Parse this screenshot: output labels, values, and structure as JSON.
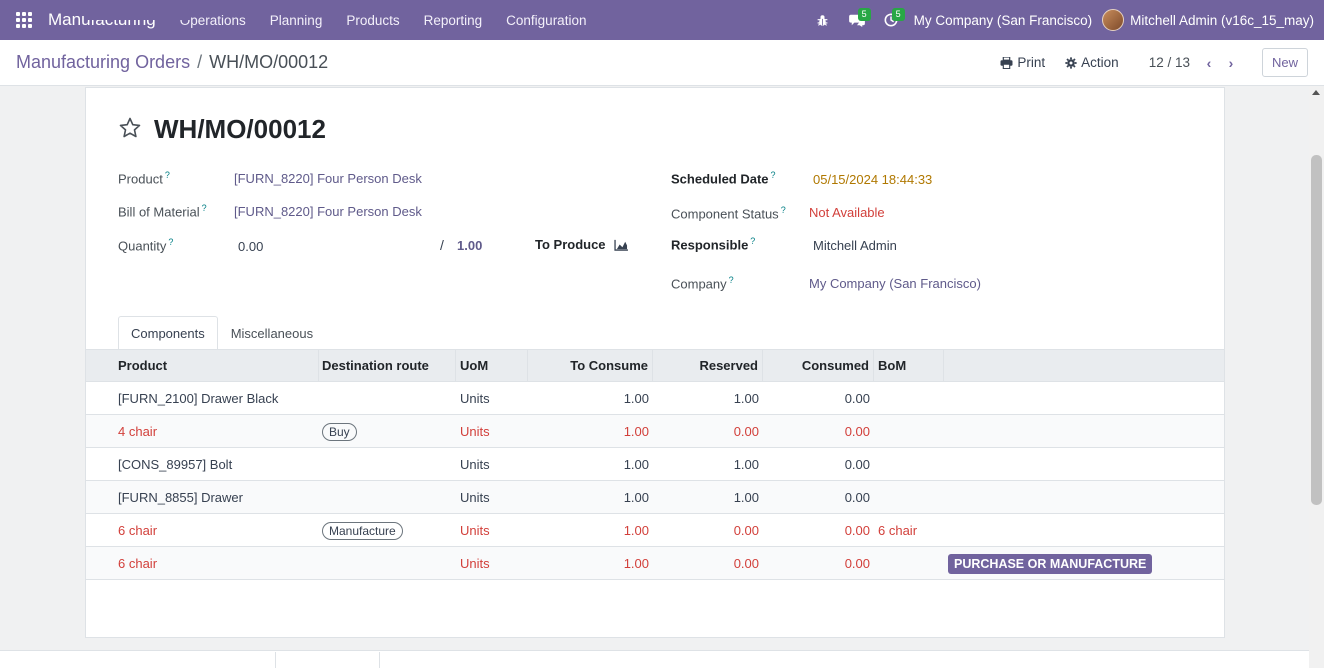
{
  "navbar": {
    "app_name": "Manufacturing",
    "menu": [
      "Operations",
      "Planning",
      "Products",
      "Reporting",
      "Configuration"
    ],
    "messages_count": "5",
    "activities_count": "5",
    "company": "My Company (San Francisco)",
    "user": "Mitchell Admin (v16c_15_may)"
  },
  "control": {
    "breadcrumb_parent": "Manufacturing Orders",
    "breadcrumb_sep": "/",
    "breadcrumb_current": "WH/MO/00012",
    "print_label": "Print",
    "action_label": "Action",
    "pager": "12 / 13",
    "new_label": "New"
  },
  "form": {
    "title": "WH/MO/00012",
    "product_label": "Product",
    "product_value": "[FURN_8220] Four Person Desk",
    "bom_label": "Bill of Material",
    "bom_value": "[FURN_8220] Four Person Desk",
    "quantity_label": "Quantity",
    "quantity_value": "0.00",
    "quantity_sep": "/",
    "quantity_total": "1.00",
    "to_produce_label": "To Produce",
    "scheduled_label": "Scheduled Date",
    "scheduled_value": "05/15/2024 18:44:33",
    "status_label": "Component Status",
    "status_value": "Not Available",
    "responsible_label": "Responsible",
    "responsible_value": "Mitchell Admin",
    "company_label": "Company",
    "company_value": "My Company (San Francisco)",
    "help_mark": "?"
  },
  "tabs": [
    "Components",
    "Miscellaneous"
  ],
  "table": {
    "headers": [
      "Product",
      "Destination route",
      "UoM",
      "To Consume",
      "Reserved",
      "Consumed",
      "BoM"
    ],
    "rows": [
      {
        "product": "[FURN_2100] Drawer Black",
        "route": "",
        "uom": "Units",
        "to_consume": "1.00",
        "reserved": "1.00",
        "consumed": "0.00",
        "bom": "",
        "action": "",
        "warn": false
      },
      {
        "product": "4 chair",
        "route": "Buy",
        "uom": "Units",
        "to_consume": "1.00",
        "reserved": "0.00",
        "consumed": "0.00",
        "bom": "",
        "action": "",
        "warn": true
      },
      {
        "product": "[CONS_89957] Bolt",
        "route": "",
        "uom": "Units",
        "to_consume": "1.00",
        "reserved": "1.00",
        "consumed": "0.00",
        "bom": "",
        "action": "",
        "warn": false
      },
      {
        "product": "[FURN_8855] Drawer",
        "route": "",
        "uom": "Units",
        "to_consume": "1.00",
        "reserved": "1.00",
        "consumed": "0.00",
        "bom": "",
        "action": "",
        "warn": false
      },
      {
        "product": "6 chair",
        "route": "Manufacture",
        "uom": "Units",
        "to_consume": "1.00",
        "reserved": "0.00",
        "consumed": "0.00",
        "bom": "6 chair",
        "action": "",
        "warn": true
      },
      {
        "product": "6 chair",
        "route": "",
        "uom": "Units",
        "to_consume": "1.00",
        "reserved": "0.00",
        "consumed": "0.00",
        "bom": "",
        "action": "PURCHASE OR MANUFACTURE",
        "warn": true
      }
    ]
  },
  "colors": {
    "brand": "#71639e",
    "danger": "#d23f3a",
    "date": "#b07800"
  }
}
